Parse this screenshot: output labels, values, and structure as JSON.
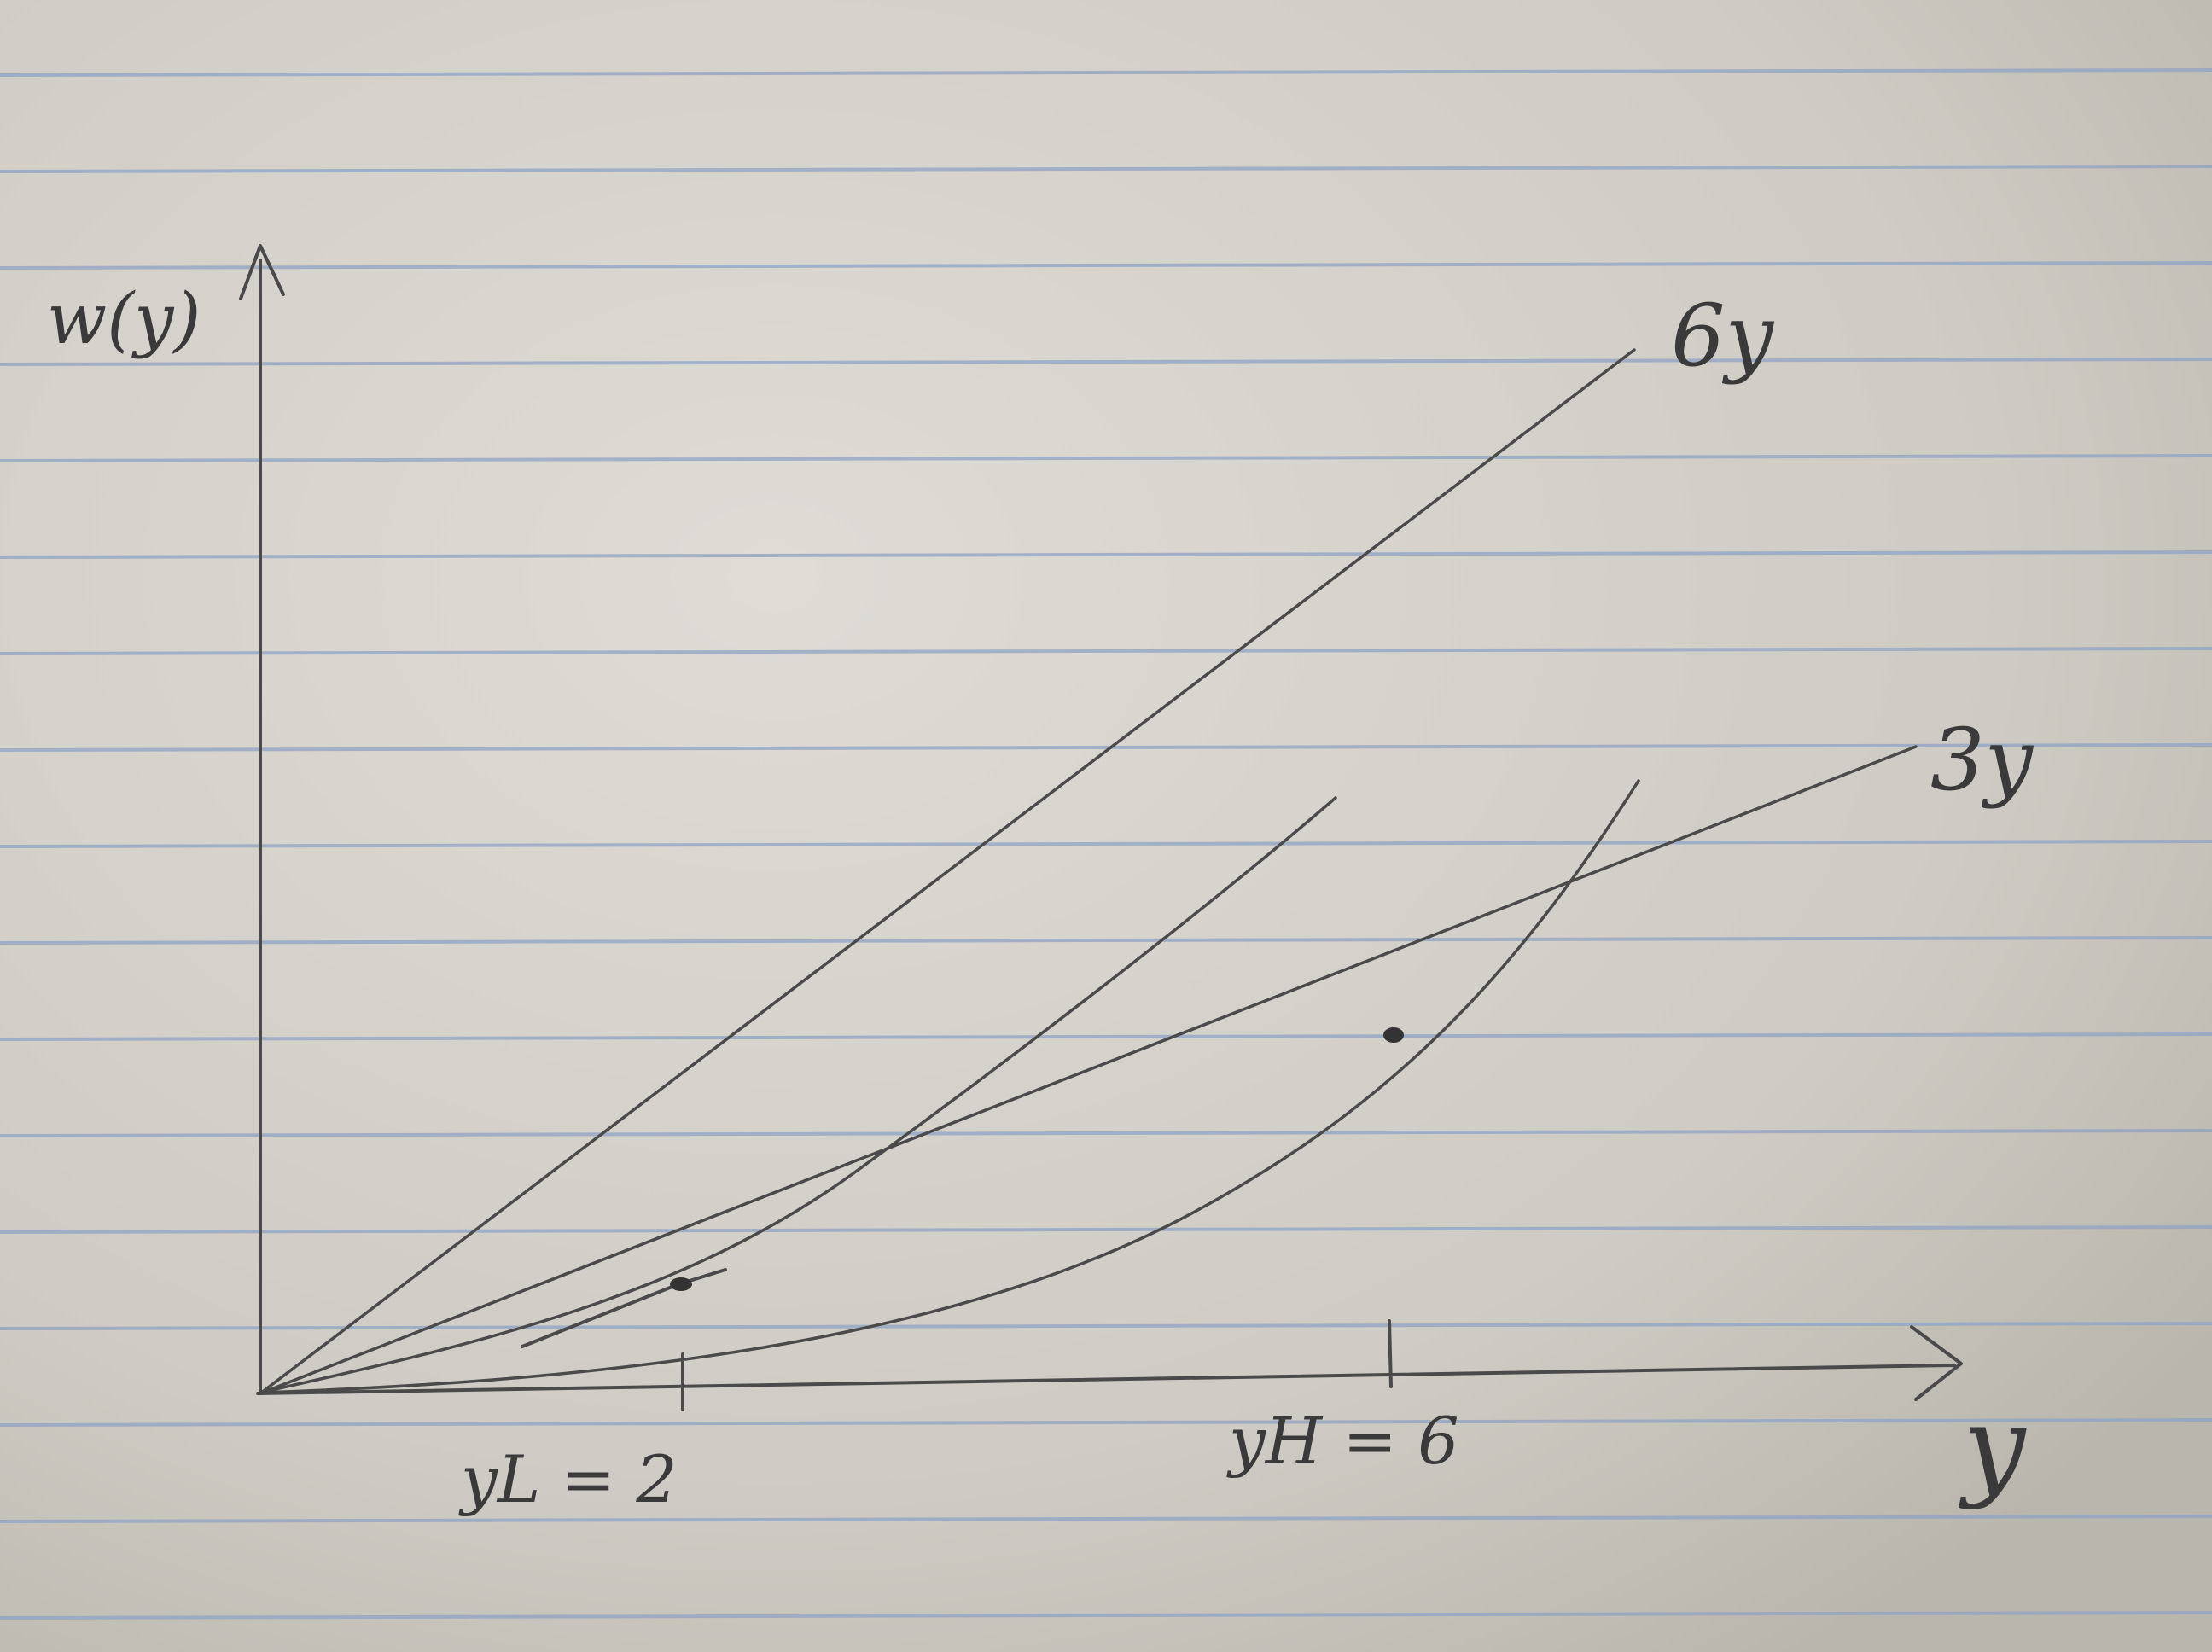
{
  "diagram": {
    "y_axis_label": "w(y)",
    "x_axis_label": "y",
    "lines": [
      {
        "name": "line-6y",
        "label": "6y",
        "slope": 6
      },
      {
        "name": "line-3y",
        "label": "3y",
        "slope": 3
      }
    ],
    "ticks": [
      {
        "name": "tick-yL",
        "label": "yL = 2",
        "value": 2
      },
      {
        "name": "tick-yH",
        "label": "yH = 6",
        "value": 6
      }
    ],
    "colors": {
      "paper": "#cfcdc5",
      "rule_line": "#8fa3c4",
      "margin_line": "#c79aa0",
      "pencil": "#4a4a4a"
    }
  }
}
